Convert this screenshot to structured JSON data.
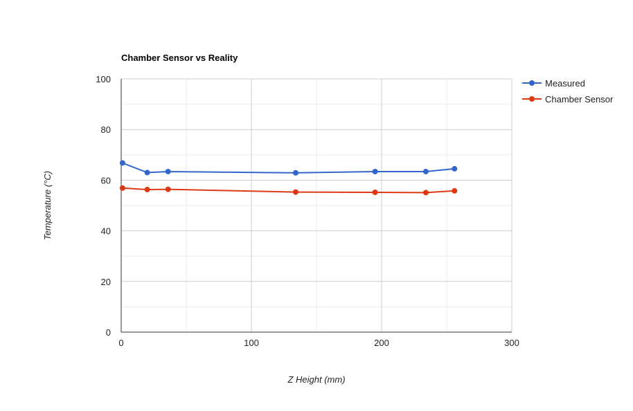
{
  "chart_data": {
    "type": "line",
    "title": "Chamber Sensor vs Reality",
    "xlabel": "Z Height (mm)",
    "ylabel": "Temperature (°C)",
    "xlim": [
      0,
      300
    ],
    "ylim": [
      0,
      100
    ],
    "x_ticks": [
      0,
      100,
      200,
      300
    ],
    "y_ticks": [
      0,
      20,
      40,
      60,
      80,
      100
    ],
    "x_minor_gridlines": [
      50,
      150,
      250
    ],
    "y_minor_gridlines": [
      10,
      30,
      50,
      70,
      90
    ],
    "grid": true,
    "legend_position": "right",
    "series": [
      {
        "name": "Measured",
        "color": "#3366cc",
        "points": [
          {
            "x": 1,
            "y": 66.8
          },
          {
            "x": 20,
            "y": 63.0
          },
          {
            "x": 36,
            "y": 63.4
          },
          {
            "x": 134,
            "y": 62.9
          },
          {
            "x": 195,
            "y": 63.4
          },
          {
            "x": 234,
            "y": 63.4
          },
          {
            "x": 256,
            "y": 64.5
          }
        ]
      },
      {
        "name": "Chamber Sensor",
        "color": "#dc3912",
        "points": [
          {
            "x": 1,
            "y": 56.9
          },
          {
            "x": 20,
            "y": 56.3
          },
          {
            "x": 36,
            "y": 56.4
          },
          {
            "x": 134,
            "y": 55.3
          },
          {
            "x": 195,
            "y": 55.2
          },
          {
            "x": 234,
            "y": 55.1
          },
          {
            "x": 256,
            "y": 55.8
          }
        ]
      }
    ]
  }
}
